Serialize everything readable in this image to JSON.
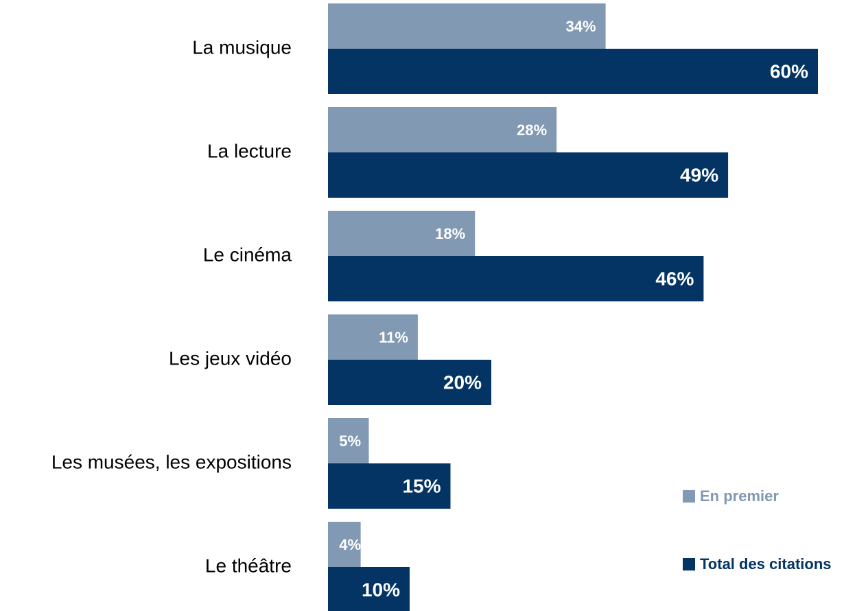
{
  "chart_data": {
    "type": "hbar",
    "categories": [
      "La musique",
      "La lecture",
      "Le cinéma",
      "Les jeux vidéo",
      "Les musées, les expositions",
      "Le théâtre"
    ],
    "series": [
      {
        "name": "En premier",
        "color": "#8199b3",
        "values": [
          34,
          28,
          18,
          11,
          5,
          4
        ],
        "value_labels": [
          "34%",
          "28%",
          "18%",
          "11%",
          "5%",
          "4%"
        ]
      },
      {
        "name": "Total des citations",
        "color": "#033464",
        "values": [
          60,
          49,
          46,
          20,
          15,
          10
        ],
        "value_labels": [
          "60%",
          "49%",
          "46%",
          "20%",
          "15%",
          "10%"
        ]
      }
    ],
    "legend": "lower right"
  }
}
